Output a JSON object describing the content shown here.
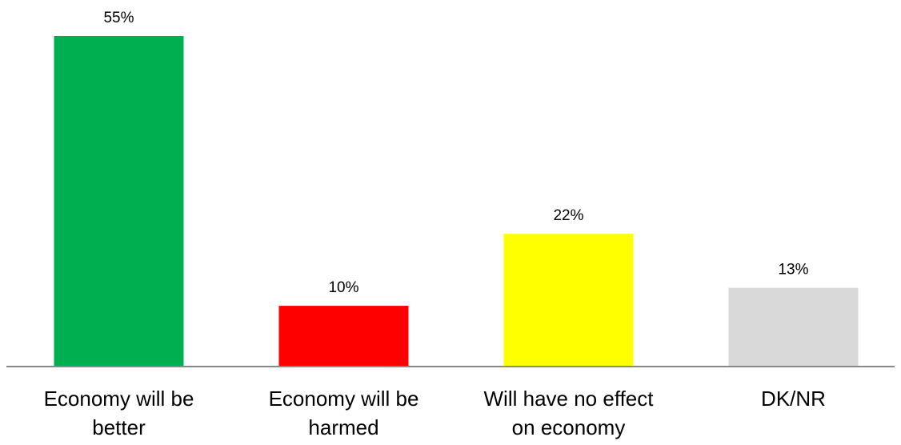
{
  "chart_data": {
    "type": "bar",
    "title": "",
    "xlabel": "",
    "ylabel": "",
    "categories": [
      [
        "Economy will be",
        "better"
      ],
      [
        "Economy will be",
        "harmed"
      ],
      [
        "Will have no effect",
        "on economy"
      ],
      [
        "DK/NR"
      ]
    ],
    "values": [
      55,
      10,
      22,
      13
    ],
    "value_labels": [
      "55%",
      "10%",
      "22%",
      "13%"
    ],
    "colors": [
      "#00b050",
      "#ff0000",
      "#ffff00",
      "#d9d9d9"
    ],
    "axis_color": "#888888",
    "ylim": [
      0,
      55
    ],
    "grid": false,
    "legend": "none"
  }
}
